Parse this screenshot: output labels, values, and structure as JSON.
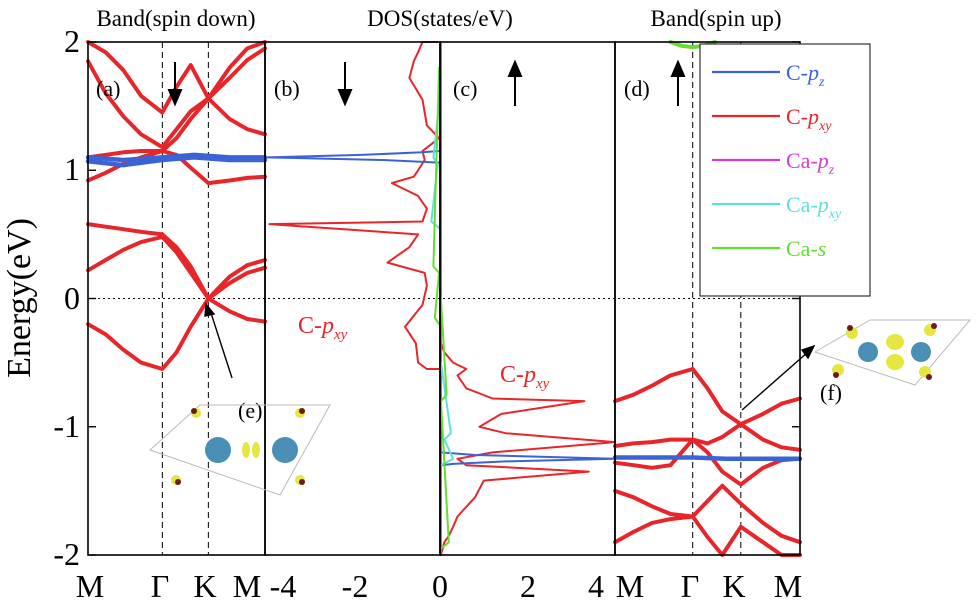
{
  "figure": {
    "ylabel": "Energy(eV)",
    "yticks": [
      "2",
      "1",
      "0",
      "-1",
      "-2"
    ],
    "band_left_title": "Band(spin down)",
    "dos_title": "DOS(states/eV)",
    "band_right_title": "Band(spin up)",
    "panel_labels": [
      "(a)",
      "(b)",
      "(c)",
      "(d)",
      "(e)",
      "(f)"
    ],
    "band_xticks": [
      "M",
      "Γ",
      "K",
      "M"
    ],
    "dos_xticks": [
      "-4",
      "-2",
      "0",
      "2",
      "4"
    ],
    "ann_pxy_left": "C-",
    "ann_pxy_right": "C-",
    "ann_sub_p": "p",
    "ann_sub_xy": "xy",
    "legend": [
      {
        "base": "C-",
        "orb": "p",
        "sub": "z",
        "color": "#3a63d6"
      },
      {
        "base": "C-",
        "orb": "p",
        "sub": "xy",
        "color": "#e8262a"
      },
      {
        "base": "Ca-",
        "orb": "p",
        "sub": "z",
        "color": "#d63cd6"
      },
      {
        "base": "Ca-",
        "orb": "p",
        "sub": "xy",
        "color": "#5fe0de"
      },
      {
        "base": "Ca-",
        "orb": "s",
        "sub": "",
        "color": "#66dd33"
      }
    ],
    "colors": {
      "c_pz": "#3a63d6",
      "c_pxy": "#e8262a",
      "ca_pz": "#d63cd6",
      "ca_pxy": "#5fe0de",
      "ca_s": "#66dd33",
      "atom": "#4a8fb5",
      "lobe": "#e6e640"
    }
  },
  "chart_data": [
    {
      "type": "line",
      "panel": "(a)",
      "title": "Band(spin down)",
      "xlabel": "",
      "ylabel": "Energy(eV)",
      "ylim": [
        -2,
        2
      ],
      "kpoints": [
        "M",
        "Γ",
        "K",
        "M"
      ],
      "kpos": [
        0,
        0.42,
        0.68,
        1.0
      ],
      "series": [
        {
          "name": "C-pxy band 1",
          "color": "#e8262a",
          "x": [
            0,
            0.1,
            0.2,
            0.3,
            0.42,
            0.5,
            0.58,
            0.68,
            0.8,
            0.9,
            1.0
          ],
          "y": [
            -0.2,
            -0.28,
            -0.4,
            -0.5,
            -0.55,
            -0.42,
            -0.22,
            0.0,
            -0.1,
            -0.16,
            -0.18
          ]
        },
        {
          "name": "C-pxy band 2",
          "color": "#e8262a",
          "x": [
            0,
            0.1,
            0.2,
            0.3,
            0.42,
            0.5,
            0.58,
            0.68,
            0.8,
            0.9,
            1.0
          ],
          "y": [
            0.22,
            0.3,
            0.38,
            0.44,
            0.48,
            0.36,
            0.2,
            0.0,
            0.12,
            0.2,
            0.24
          ]
        },
        {
          "name": "C-pxy band 3",
          "color": "#e8262a",
          "x": [
            0,
            0.1,
            0.2,
            0.3,
            0.42,
            0.5,
            0.58,
            0.68,
            0.8,
            0.9,
            1.0
          ],
          "y": [
            0.58,
            0.56,
            0.54,
            0.52,
            0.5,
            0.4,
            0.25,
            0.0,
            0.17,
            0.26,
            0.3
          ]
        },
        {
          "name": "C-pxy band 4",
          "color": "#e8262a",
          "x": [
            0,
            0.1,
            0.2,
            0.3,
            0.42,
            0.5,
            0.58,
            0.68,
            0.8,
            0.9,
            1.0
          ],
          "y": [
            0.92,
            0.98,
            1.05,
            1.1,
            1.15,
            1.12,
            1.02,
            0.9,
            0.92,
            0.94,
            0.95
          ]
        },
        {
          "name": "C-pxy band 5",
          "color": "#e8262a",
          "x": [
            0,
            0.1,
            0.2,
            0.3,
            0.42,
            0.5,
            0.58,
            0.68,
            0.8,
            0.9,
            1.0
          ],
          "y": [
            1.1,
            1.12,
            1.14,
            1.15,
            1.15,
            1.25,
            1.4,
            1.56,
            1.4,
            1.32,
            1.28
          ]
        },
        {
          "name": "C-pxy band 6",
          "color": "#e8262a",
          "x": [
            0,
            0.1,
            0.2,
            0.3,
            0.42,
            0.5,
            0.58,
            0.68,
            0.8,
            0.9,
            1.0
          ],
          "y": [
            1.85,
            1.6,
            1.42,
            1.28,
            1.18,
            1.32,
            1.46,
            1.56,
            1.8,
            1.95,
            2.0
          ]
        },
        {
          "name": "C-pxy band 7",
          "color": "#e8262a",
          "x": [
            0,
            0.1,
            0.2,
            0.3,
            0.42,
            0.5,
            0.58,
            0.68,
            0.8,
            0.9,
            1.0
          ],
          "y": [
            2.0,
            1.92,
            1.78,
            1.58,
            1.45,
            1.65,
            1.82,
            1.56,
            1.72,
            1.86,
            1.95
          ]
        },
        {
          "name": "C-pz flat band",
          "color": "#3a63d6",
          "x": [
            0,
            0.2,
            0.42,
            0.6,
            0.8,
            1.0
          ],
          "y": [
            1.1,
            1.08,
            1.1,
            1.12,
            1.1,
            1.1
          ]
        },
        {
          "name": "C-pz flat band 2",
          "color": "#3a63d6",
          "x": [
            0,
            0.2,
            0.42,
            0.6,
            0.8,
            1.0
          ],
          "y": [
            1.07,
            1.04,
            1.08,
            1.1,
            1.08,
            1.08
          ]
        }
      ]
    },
    {
      "type": "line",
      "panel": "(b)",
      "title": "DOS(states/eV)",
      "xlabel": "",
      "ylabel": "",
      "xlim": [
        -4,
        0
      ],
      "ylim": [
        -2,
        2
      ],
      "series": [
        {
          "name": "C-pxy",
          "color": "#e8262a",
          "x": [
            -0.02,
            -0.3,
            -0.5,
            -0.55,
            -0.8,
            -0.4,
            -0.3,
            -0.35,
            -1.2,
            -0.7,
            -0.5,
            -3.9,
            -0.4,
            -0.3,
            -0.5,
            -1.1,
            -0.6,
            -0.5,
            -0.35,
            -0.4,
            -0.02,
            -0.3,
            -0.4,
            -0.7,
            -0.6,
            -0.5,
            -0.4,
            -0.02
          ],
          "y": [
            -0.55,
            -0.55,
            -0.5,
            -0.35,
            -0.22,
            -0.05,
            0.1,
            0.2,
            0.28,
            0.4,
            0.5,
            0.58,
            0.6,
            0.7,
            0.8,
            0.9,
            0.95,
            1.0,
            1.08,
            1.15,
            1.25,
            1.35,
            1.55,
            1.72,
            1.85,
            1.92,
            2.0,
            2.0
          ]
        },
        {
          "name": "C-pz",
          "color": "#3a63d6",
          "x": [
            -0.02,
            -1.3,
            -3.95,
            -1.8,
            -0.4,
            -0.02
          ],
          "y": [
            1.06,
            1.08,
            1.1,
            1.12,
            1.14,
            1.15
          ]
        },
        {
          "name": "Ca-pxy",
          "color": "#5fe0de",
          "x": [
            -0.02,
            -0.2,
            -0.05,
            -0.15,
            -0.02
          ],
          "y": [
            0.55,
            0.6,
            1.05,
            1.1,
            1.5
          ]
        },
        {
          "name": "Ca-s",
          "color": "#66dd33",
          "x": [
            -0.02,
            -0.12,
            -0.02,
            -0.15,
            -0.02
          ],
          "y": [
            -0.2,
            -0.15,
            0.2,
            0.25,
            1.8
          ]
        }
      ],
      "annotation": "C-pxy"
    },
    {
      "type": "line",
      "panel": "(c)",
      "title": "DOS(states/eV)",
      "xlabel": "",
      "ylabel": "",
      "xlim": [
        0,
        4
      ],
      "ylim": [
        -2,
        2
      ],
      "series": [
        {
          "name": "C-pxy",
          "color": "#e8262a",
          "x": [
            0.02,
            0.1,
            0.2,
            0.3,
            0.4,
            0.8,
            1.0,
            3.4,
            0.6,
            0.4,
            1.2,
            4.0,
            1.5,
            0.9,
            1.4,
            3.3,
            1.2,
            0.6,
            0.4,
            0.6,
            0.3,
            0.1,
            0.02
          ],
          "y": [
            -2.0,
            -1.9,
            -1.85,
            -1.78,
            -1.7,
            -1.55,
            -1.42,
            -1.35,
            -1.3,
            -1.25,
            -1.2,
            -1.12,
            -1.05,
            -1.0,
            -0.9,
            -0.8,
            -0.78,
            -0.7,
            -0.6,
            -0.55,
            -0.5,
            -0.42,
            -0.35
          ]
        },
        {
          "name": "C-pz",
          "color": "#3a63d6",
          "x": [
            0.02,
            0.8,
            4.0,
            1.5,
            0.3,
            0.02
          ],
          "y": [
            -1.2,
            -1.22,
            -1.25,
            -1.27,
            -1.29,
            -1.3
          ]
        },
        {
          "name": "Ca-pz",
          "color": "#d63cd6",
          "x": [
            0.02,
            0.02
          ],
          "y": [
            -2.0,
            2.0
          ]
        },
        {
          "name": "Ca-pxy",
          "color": "#5fe0de",
          "x": [
            0.02,
            0.3,
            0.1,
            0.25,
            0.02
          ],
          "y": [
            -1.3,
            -1.25,
            -1.1,
            -1.05,
            -0.5
          ]
        },
        {
          "name": "Ca-s",
          "color": "#66dd33",
          "x": [
            0.02,
            0.2,
            0.02,
            0.15,
            0.02
          ],
          "y": [
            -1.95,
            -1.9,
            -0.8,
            -0.75,
            0.0
          ]
        }
      ],
      "annotation": "C-pxy"
    },
    {
      "type": "line",
      "panel": "(d)",
      "title": "Band(spin up)",
      "xlabel": "",
      "ylabel": "",
      "ylim": [
        -2,
        2
      ],
      "kpoints": [
        "M",
        "Γ",
        "K",
        "M"
      ],
      "kpos": [
        0,
        0.42,
        0.68,
        1.0
      ],
      "series": [
        {
          "name": "C-pxy band 1",
          "color": "#e8262a",
          "x": [
            0,
            0.1,
            0.2,
            0.3,
            0.42,
            0.5,
            0.58,
            0.68,
            0.8,
            0.9,
            1.0
          ],
          "y": [
            -0.8,
            -0.75,
            -0.68,
            -0.6,
            -0.55,
            -0.7,
            -0.88,
            -0.98,
            -0.9,
            -0.82,
            -0.78
          ]
        },
        {
          "name": "C-pxy band 2",
          "color": "#e8262a",
          "x": [
            0,
            0.1,
            0.2,
            0.3,
            0.42,
            0.5,
            0.58,
            0.68,
            0.8,
            0.9,
            1.0
          ],
          "y": [
            -1.15,
            -1.13,
            -1.12,
            -1.1,
            -1.1,
            -1.13,
            -1.08,
            -0.98,
            -1.1,
            -1.16,
            -1.18
          ]
        },
        {
          "name": "C-pxy band 3",
          "color": "#e8262a",
          "x": [
            0,
            0.1,
            0.2,
            0.3,
            0.42,
            0.5,
            0.58,
            0.68,
            0.8,
            0.9,
            1.0
          ],
          "y": [
            -1.28,
            -1.3,
            -1.32,
            -1.3,
            -1.1,
            -1.2,
            -1.35,
            -1.45,
            -1.32,
            -1.26,
            -1.25
          ]
        },
        {
          "name": "C-pxy band 4",
          "color": "#e8262a",
          "x": [
            0,
            0.1,
            0.2,
            0.3,
            0.42,
            0.5,
            0.58,
            0.68,
            0.8,
            0.9,
            1.0
          ],
          "y": [
            -1.5,
            -1.55,
            -1.62,
            -1.68,
            -1.7,
            -1.58,
            -1.46,
            -1.6,
            -1.75,
            -1.85,
            -1.9
          ]
        },
        {
          "name": "C-pxy band 5",
          "color": "#e8262a",
          "x": [
            0,
            0.1,
            0.2,
            0.3,
            0.42,
            0.5,
            0.58,
            0.68,
            0.8,
            0.9,
            1.0
          ],
          "y": [
            -1.9,
            -1.82,
            -1.75,
            -1.72,
            -1.7,
            -1.86,
            -2.0,
            -1.78,
            -1.9,
            -2.0,
            -2.0
          ]
        },
        {
          "name": "C-pz flat band",
          "color": "#3a63d6",
          "x": [
            0,
            0.2,
            0.42,
            0.6,
            0.8,
            1.0
          ],
          "y": [
            -1.24,
            -1.24,
            -1.24,
            -1.25,
            -1.25,
            -1.25
          ]
        },
        {
          "name": "Ca-s top",
          "color": "#66dd33",
          "x": [
            0.3,
            0.36,
            0.42,
            0.48,
            0.54
          ],
          "y": [
            2.0,
            1.97,
            1.96,
            1.97,
            2.0
          ]
        }
      ]
    }
  ]
}
